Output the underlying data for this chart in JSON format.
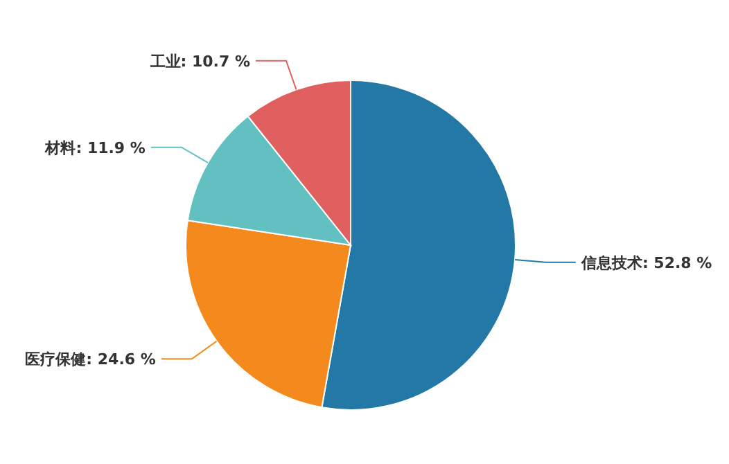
{
  "chart_data": {
    "type": "pie",
    "categories": [
      "信息技术",
      "医疗保健",
      "材料",
      "工业"
    ],
    "values": [
      52.8,
      24.6,
      11.9,
      10.7
    ],
    "colors": [
      "#2478a6",
      "#f48a1e",
      "#62c0c0",
      "#e05f5f"
    ],
    "value_labels": [
      "52.8 %",
      "24.6 %",
      "11.9 %",
      "10.7 %"
    ]
  }
}
